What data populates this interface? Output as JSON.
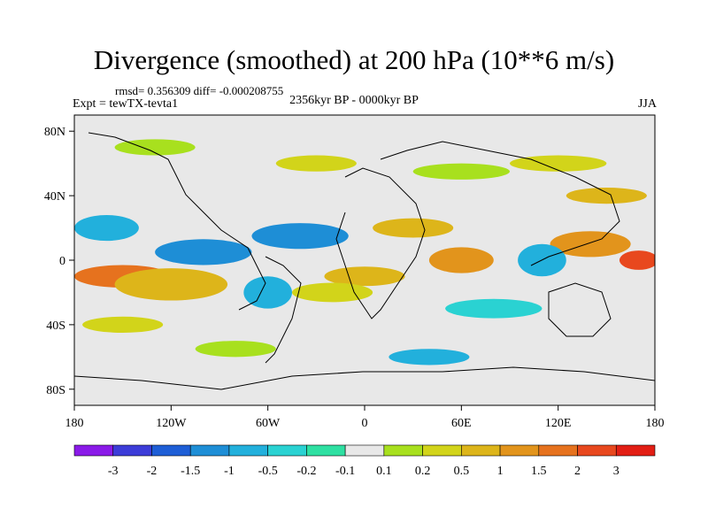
{
  "figure": {
    "title": "Divergence (smoothed) at 200 hPa (10**6 m/s)",
    "stats": "rmsd= 0.356309 diff= -0.000208755",
    "period": "2356kyr BP - 0000kyr BP",
    "experiment": "Expt = tewTX-tevta1",
    "season": "JJA"
  },
  "map": {
    "lon_range": [
      -180,
      180
    ],
    "lat_range": [
      -90,
      90
    ],
    "x_ticks": [
      {
        "value": -180,
        "label": "180"
      },
      {
        "value": -120,
        "label": "120W"
      },
      {
        "value": -60,
        "label": "60W"
      },
      {
        "value": 0,
        "label": "0"
      },
      {
        "value": 60,
        "label": "60E"
      },
      {
        "value": 120,
        "label": "120E"
      },
      {
        "value": 180,
        "label": "180"
      }
    ],
    "y_ticks": [
      {
        "value": 80,
        "label": "80N"
      },
      {
        "value": 40,
        "label": "40N"
      },
      {
        "value": 0,
        "label": "0"
      },
      {
        "value": -40,
        "label": "40S"
      },
      {
        "value": -80,
        "label": "80S"
      }
    ]
  },
  "colorbar": {
    "colors": [
      "#8a1ae8",
      "#3c3cd8",
      "#1e5ed6",
      "#1e8ed6",
      "#22b0dc",
      "#2ad2d2",
      "#2ee0a2",
      "#e8e8e8",
      "#a8e01e",
      "#d2d41a",
      "#ddb51a",
      "#e2941c",
      "#e6721e",
      "#e8481e",
      "#e21e14"
    ],
    "labels": [
      "-3",
      "-2",
      "-1.5",
      "-1",
      "-0.5",
      "-0.2",
      "-0.1",
      "0.1",
      "0.2",
      "0.5",
      "1",
      "1.5",
      "2",
      "3"
    ]
  },
  "blobs": [
    {
      "lon": -150,
      "lat": -10,
      "rx": 30,
      "ry": 7,
      "level": 12
    },
    {
      "lon": -120,
      "lat": -15,
      "rx": 35,
      "ry": 10,
      "level": 10
    },
    {
      "lon": -160,
      "lat": 20,
      "rx": 20,
      "ry": 8,
      "level": 4
    },
    {
      "lon": -100,
      "lat": 5,
      "rx": 30,
      "ry": 8,
      "level": 3
    },
    {
      "lon": -40,
      "lat": 15,
      "rx": 30,
      "ry": 8,
      "level": 3
    },
    {
      "lon": 0,
      "lat": -10,
      "rx": 25,
      "ry": 6,
      "level": 10
    },
    {
      "lon": -20,
      "lat": -20,
      "rx": 25,
      "ry": 6,
      "level": 9
    },
    {
      "lon": 60,
      "lat": 0,
      "rx": 20,
      "ry": 8,
      "level": 11
    },
    {
      "lon": 140,
      "lat": 10,
      "rx": 25,
      "ry": 8,
      "level": 11
    },
    {
      "lon": 170,
      "lat": 0,
      "rx": 12,
      "ry": 6,
      "level": 13
    },
    {
      "lon": 110,
      "lat": 0,
      "rx": 15,
      "ry": 10,
      "level": 4
    },
    {
      "lon": 30,
      "lat": 20,
      "rx": 25,
      "ry": 6,
      "level": 10
    },
    {
      "lon": -30,
      "lat": 60,
      "rx": 25,
      "ry": 5,
      "level": 9
    },
    {
      "lon": 60,
      "lat": 55,
      "rx": 30,
      "ry": 5,
      "level": 8
    },
    {
      "lon": 120,
      "lat": 60,
      "rx": 30,
      "ry": 5,
      "level": 9
    },
    {
      "lon": -130,
      "lat": 70,
      "rx": 25,
      "ry": 5,
      "level": 8
    },
    {
      "lon": 80,
      "lat": -30,
      "rx": 30,
      "ry": 6,
      "level": 5
    },
    {
      "lon": -80,
      "lat": -55,
      "rx": 25,
      "ry": 5,
      "level": 8
    },
    {
      "lon": 40,
      "lat": -60,
      "rx": 25,
      "ry": 5,
      "level": 4
    },
    {
      "lon": -60,
      "lat": -20,
      "rx": 15,
      "ry": 10,
      "level": 4
    },
    {
      "lon": 150,
      "lat": 40,
      "rx": 25,
      "ry": 5,
      "level": 10
    },
    {
      "lon": -150,
      "lat": -40,
      "rx": 25,
      "ry": 5,
      "level": 9
    }
  ]
}
